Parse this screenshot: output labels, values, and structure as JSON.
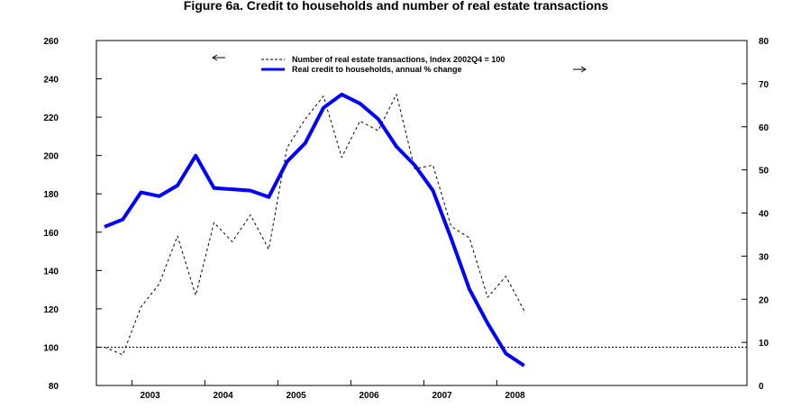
{
  "chart_data": {
    "type": "line",
    "title": "Figure 6a. Credit to households and number of real estate transactions",
    "x_labels": [
      "2003",
      "2004",
      "2005",
      "2006",
      "2007",
      "2008"
    ],
    "left_axis": {
      "ylim": [
        80,
        260
      ],
      "ticks": [
        80,
        100,
        120,
        140,
        160,
        180,
        200,
        220,
        240,
        260
      ]
    },
    "right_axis": {
      "ylim": [
        0,
        80
      ],
      "ticks": [
        0,
        10,
        20,
        30,
        40,
        50,
        60,
        70,
        80
      ]
    },
    "reference_line": {
      "axis": "left",
      "value": 100,
      "style": "dotted"
    },
    "legend_position": "top-center",
    "series": [
      {
        "name": "Number of real estate transactions, Index 2002Q4 = 100",
        "axis": "left",
        "style": "dashed",
        "color": "#000000",
        "legend_arrow": "left",
        "values": [
          100,
          96,
          121,
          133,
          158,
          127,
          165,
          155,
          169,
          151,
          204,
          219,
          231,
          199,
          218,
          213,
          232,
          193,
          195,
          163,
          157,
          126,
          137,
          119
        ]
      },
      {
        "name": "Real credit to households, annual % change",
        "axis": "right",
        "style": "solid",
        "color": "#0000ff",
        "legend_arrow": "right",
        "values": [
          36.8,
          38.5,
          44.8,
          43.9,
          46.4,
          53.3,
          45.8,
          45.5,
          45.2,
          43.7,
          51.9,
          56.2,
          64.4,
          67.5,
          65.4,
          61.8,
          55.4,
          51.1,
          45.2,
          34.1,
          22.3,
          14.4,
          7.4,
          4.6
        ]
      }
    ]
  }
}
